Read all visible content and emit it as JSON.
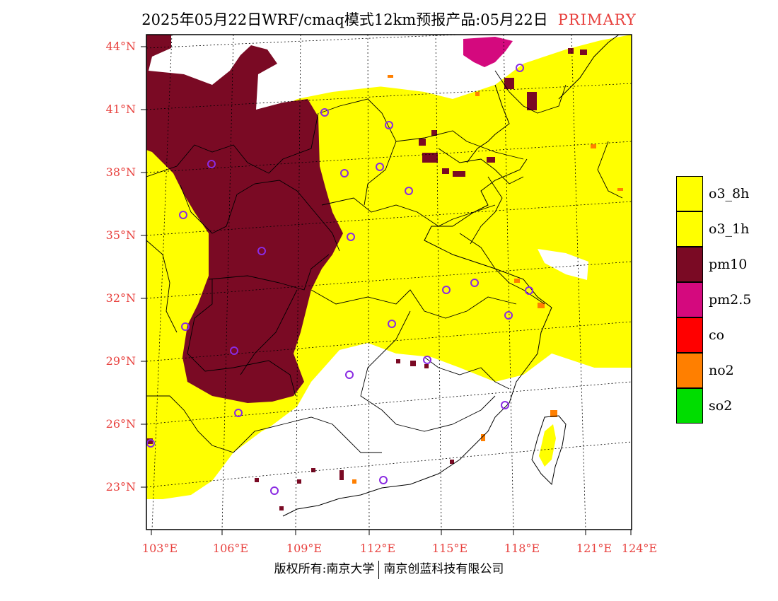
{
  "title": {
    "main": "2025年05月22日WRF/cmaq模式12km预报产品:05月22日",
    "tag": "PRIMARY"
  },
  "axes": {
    "lat_labels": [
      "44°N",
      "41°N",
      "38°N",
      "35°N",
      "32°N",
      "29°N",
      "26°N",
      "23°N"
    ],
    "lon_labels": [
      "103°E",
      "106°E",
      "109°E",
      "112°E",
      "115°E",
      "118°E",
      "121°E",
      "124°E"
    ]
  },
  "legend": [
    {
      "label": "o3_8h",
      "color": "#ffff00"
    },
    {
      "label": "o3_1h",
      "color": "#ffff00"
    },
    {
      "label": "pm10",
      "color": "#7a0a24"
    },
    {
      "label": "pm2.5",
      "color": "#d4097e"
    },
    {
      "label": "co",
      "color": "#ff0000"
    },
    {
      "label": "no2",
      "color": "#ff7f00"
    },
    {
      "label": "so2",
      "color": "#00dd00"
    }
  ],
  "footer": {
    "left": "版权所有:南京大学",
    "right": "南京创蓝科技有限公司"
  }
}
